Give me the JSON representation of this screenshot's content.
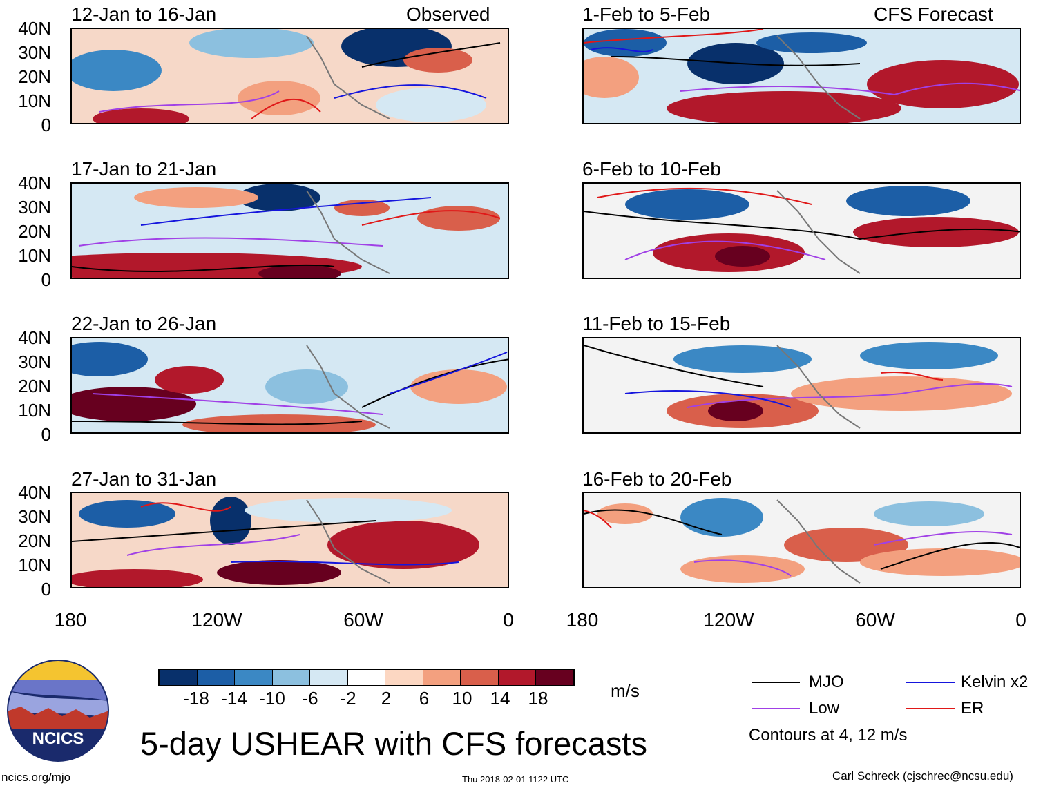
{
  "left_header": "Observed",
  "right_header": "CFS Forecast",
  "panels": {
    "obs": [
      "12-Jan to 16-Jan",
      "17-Jan to 21-Jan",
      "22-Jan to 26-Jan",
      "27-Jan to 31-Jan"
    ],
    "fcst": [
      "1-Feb to 5-Feb",
      "6-Feb to 10-Feb",
      "11-Feb to 15-Feb",
      "16-Feb to 20-Feb"
    ]
  },
  "lat_labels": [
    "40N",
    "30N",
    "20N",
    "10N",
    "0"
  ],
  "lon_labels": [
    "180",
    "120W",
    "60W",
    "0"
  ],
  "colorbar": {
    "labels": [
      "-18",
      "-14",
      "-10",
      "-6",
      "-2",
      "2",
      "6",
      "10",
      "14",
      "18"
    ],
    "unit": "m/s",
    "colors": [
      "#08306b",
      "#1c5ea6",
      "#3b88c4",
      "#8cc0df",
      "#d5e8f3",
      "#ffffff",
      "#fcd7c2",
      "#f3a07f",
      "#d95f4b",
      "#b2182b",
      "#67001f"
    ]
  },
  "legend": {
    "mjo": "MJO",
    "kelvin": "Kelvin x2",
    "low": "Low",
    "er": "ER",
    "note": "Contours at 4, 12 m/s",
    "colors": {
      "mjo": "#000000",
      "kelvin": "#1515dd",
      "low": "#a040e6",
      "er": "#e01818"
    }
  },
  "title": "5-day USHEAR with CFS forecasts",
  "logo_text": "NCICS",
  "footer": {
    "left": "ncics.org/mjo",
    "center": "Thu 2018-02-01 1122 UTC",
    "right": "Carl Schreck (cjschrec@ncsu.edu)"
  }
}
